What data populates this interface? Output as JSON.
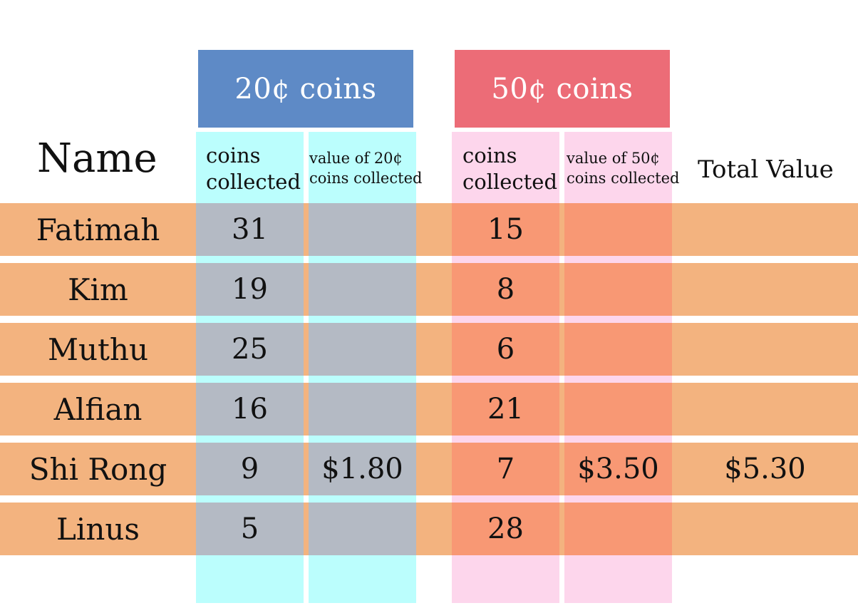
{
  "colors": {
    "header_20": "#5e8ac6",
    "header_50": "#ec6c77",
    "col_20_bg": "#bbfefd",
    "col_50_bg": "#fdd6ec",
    "row_band": "#f3b37f",
    "row_over_20": "#b4bac4",
    "row_over_50": "#f89874"
  },
  "headers": {
    "coins20": "20¢ coins",
    "coins50": "50¢ coins",
    "name": "Name",
    "coins_collected_line1": "coins",
    "coins_collected_line2": "collected",
    "value20_line1": "value of 20¢",
    "value20_line2": "coins collected",
    "value50_line1": "value of 50¢",
    "value50_line2": "coins collected",
    "total": "Total Value"
  },
  "rows": [
    {
      "name": "Fatimah",
      "coins20": "31",
      "value20": "",
      "coins50": "15",
      "value50": "",
      "total": ""
    },
    {
      "name": "Kim",
      "coins20": "19",
      "value20": "",
      "coins50": "8",
      "value50": "",
      "total": ""
    },
    {
      "name": "Muthu",
      "coins20": "25",
      "value20": "",
      "coins50": "6",
      "value50": "",
      "total": ""
    },
    {
      "name": "Alfian",
      "coins20": "16",
      "value20": "",
      "coins50": "21",
      "value50": "",
      "total": ""
    },
    {
      "name": "Shi Rong",
      "coins20": "9",
      "value20": "$1.80",
      "coins50": "7",
      "value50": "$3.50",
      "total": "$5.30"
    },
    {
      "name": "Linus",
      "coins20": "5",
      "value20": "",
      "coins50": "28",
      "value50": "",
      "total": ""
    }
  ]
}
